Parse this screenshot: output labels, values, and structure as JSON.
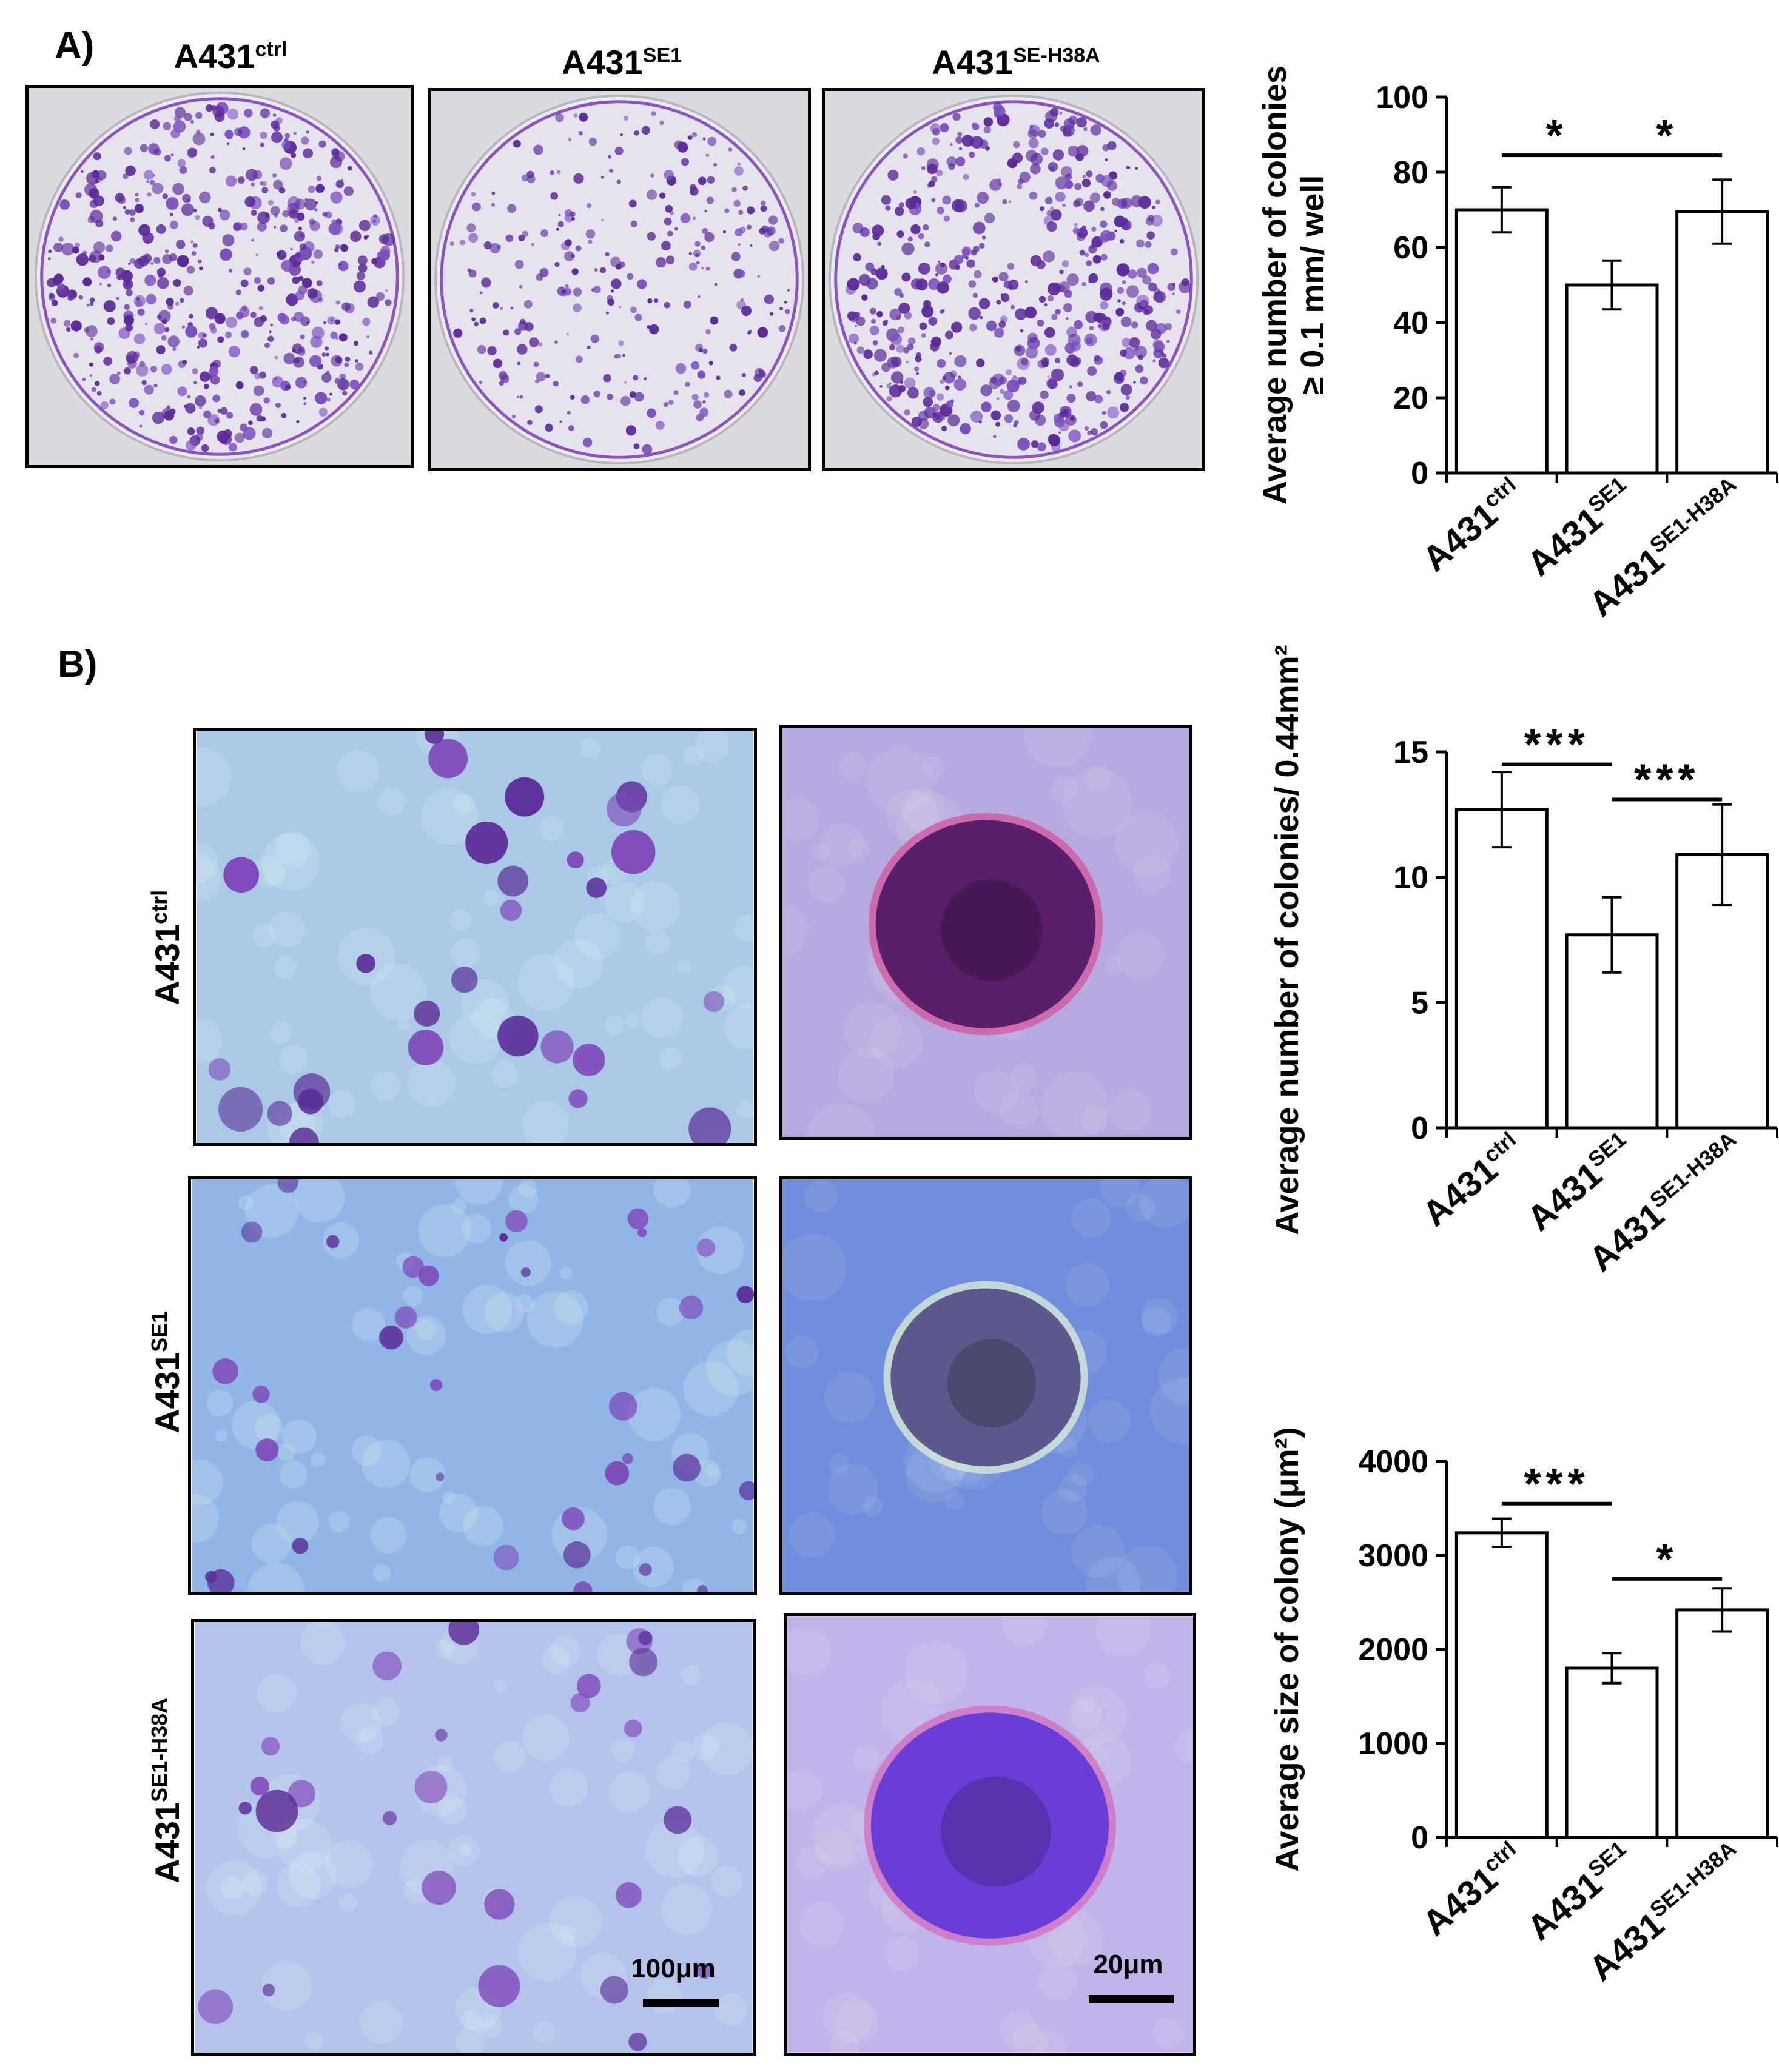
{
  "panelA": {
    "letter": "A)",
    "plates": [
      {
        "name": "A431",
        "sup": "ctrl",
        "density": 1.0
      },
      {
        "name": "A431",
        "sup": "SE1",
        "density": 0.55
      },
      {
        "name": "A431",
        "sup": "SE-H38A",
        "density": 1.0
      }
    ]
  },
  "panelB": {
    "letter": "B)",
    "rows": [
      {
        "name": "A431",
        "sup": "ctrl"
      },
      {
        "name": "A431",
        "sup": "SE1"
      },
      {
        "name": "A431",
        "sup": "SE1-H38A"
      }
    ],
    "scalebars": {
      "low_mag": "100μm",
      "high_mag": "20μm"
    }
  },
  "colors": {
    "stain_purple": "#5b2a9a",
    "plate_bg": "#e6e2ee",
    "field_bg": "#a8c8e8",
    "bar_fill": "#ffffff",
    "axis": "#000000"
  },
  "chart_data": [
    {
      "type": "bar",
      "ylabel_lines": [
        "Average number of colonies",
        "≥ 0.1 mm/ well"
      ],
      "categories": [
        {
          "name": "A431",
          "sup": "ctrl"
        },
        {
          "name": "A431",
          "sup": "SE1"
        },
        {
          "name": "A431",
          "sup": "SE1-H38A"
        }
      ],
      "values": [
        70,
        50,
        69.5
      ],
      "errors": [
        6,
        6.5,
        8.5
      ],
      "ylim": [
        0,
        100
      ],
      "yticks": [
        0,
        20,
        40,
        60,
        80,
        100
      ],
      "significance": [
        {
          "from": 0,
          "to": 1,
          "label": "*",
          "y": 84.5
        },
        {
          "from": 1,
          "to": 2,
          "label": "*",
          "y": 84.5
        }
      ]
    },
    {
      "type": "bar",
      "ylabel_lines": [
        "Average number of colonies/ 0.44mm²"
      ],
      "categories": [
        {
          "name": "A431",
          "sup": "ctrl"
        },
        {
          "name": "A431",
          "sup": "SE1"
        },
        {
          "name": "A431",
          "sup": "SE1-H38A"
        }
      ],
      "values": [
        12.7,
        7.7,
        10.9
      ],
      "errors": [
        1.5,
        1.5,
        2.0
      ],
      "ylim": [
        0,
        15
      ],
      "yticks": [
        0,
        5,
        10,
        15
      ],
      "significance": [
        {
          "from": 0,
          "to": 1,
          "label": "***",
          "y": 14.5
        },
        {
          "from": 1,
          "to": 2,
          "label": "***",
          "y": 13.1
        }
      ]
    },
    {
      "type": "bar",
      "ylabel_lines": [
        "Average size of  colony (μm²)"
      ],
      "categories": [
        {
          "name": "A431",
          "sup": "ctrl"
        },
        {
          "name": "A431",
          "sup": "SE1"
        },
        {
          "name": "A431",
          "sup": "SE1-H38A"
        }
      ],
      "values": [
        3240,
        1800,
        2420
      ],
      "errors": [
        150,
        160,
        230
      ],
      "ylim": [
        0,
        4000
      ],
      "yticks": [
        0,
        1000,
        2000,
        3000,
        4000
      ],
      "significance": [
        {
          "from": 0,
          "to": 1,
          "label": "***",
          "y": 3550
        },
        {
          "from": 1,
          "to": 2,
          "label": "*",
          "y": 2750
        }
      ]
    }
  ]
}
